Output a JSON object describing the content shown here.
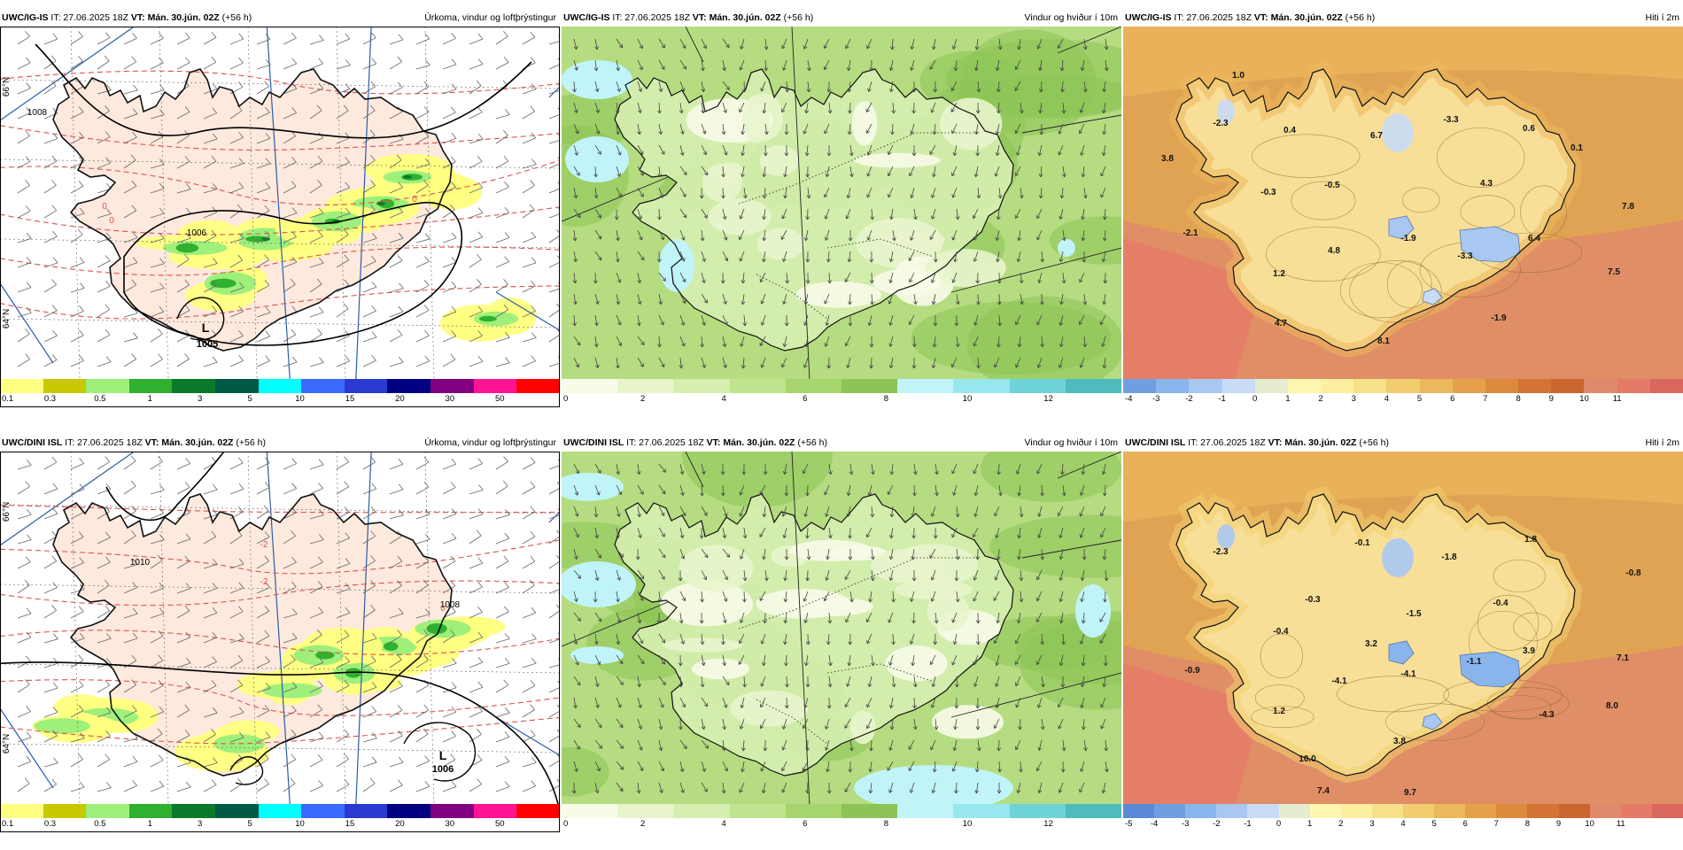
{
  "panels": [
    {
      "id": "tl",
      "model": "UWC/IG-IS",
      "it": "IT: 27.06.2025 18Z",
      "vt_label": "VT:",
      "vt": "Mán. 30.jún. 02Z",
      "lead": "(+56 h)",
      "title": "Úrkoma, vindur og loftþrýstingur",
      "type": "precip",
      "legend_labels": [
        "0.1",
        "0.3",
        "0.5",
        "1",
        "3",
        "5",
        "10",
        "15",
        "20",
        "30",
        "50"
      ],
      "legend_colors": [
        "#ffff80",
        "#c8c800",
        "#9ef07a",
        "#2fb02f",
        "#0a7a2a",
        "#005a44",
        "#00ffff",
        "#3a6bff",
        "#2a3ad0",
        "#000080",
        "#800080",
        "#ff1493",
        "#ff0000"
      ],
      "map_labels": [
        {
          "text": "L",
          "kind": "low"
        },
        {
          "text": "1005",
          "kind": "low"
        },
        {
          "text": "1008",
          "kind": "isobar"
        },
        {
          "text": "1006",
          "kind": "isobar"
        },
        {
          "text": "1006",
          "kind": "isobar"
        },
        {
          "text": "0",
          "kind": "iso0"
        },
        {
          "text": "0",
          "kind": "iso0"
        },
        {
          "text": "0",
          "kind": "iso0"
        },
        {
          "text": "66°N",
          "kind": "lat"
        },
        {
          "text": "64°N",
          "kind": "lat"
        }
      ]
    },
    {
      "id": "tm",
      "model": "UWC/IG-IS",
      "it": "IT: 27.06.2025 18Z",
      "vt_label": "VT:",
      "vt": "Mán. 30.jún. 02Z",
      "lead": "(+56 h)",
      "title": "Vindur og hviður í 10m",
      "type": "wind",
      "legend_labels": [
        "0",
        "2",
        "4",
        "6",
        "8",
        "10",
        "12"
      ],
      "legend_colors": [
        "#f7fbe8",
        "#e8f5cc",
        "#d6eeb0",
        "#bfe38f",
        "#a6d46e",
        "#8cc456",
        "#c0f4f8",
        "#96e8ee",
        "#6dd3d8",
        "#4ebcbf"
      ],
      "map_labels": []
    },
    {
      "id": "tr",
      "model": "UWC/IG-IS",
      "it": "IT: 27.06.2025 18Z",
      "vt_label": "VT:",
      "vt": "Mán. 30.jún. 02Z",
      "lead": "(+56 h)",
      "title": "Hiti í 2m",
      "type": "temp",
      "legend_labels": [
        "-4",
        "-3",
        "-2",
        "-1",
        "0",
        "1",
        "2",
        "3",
        "4",
        "5",
        "6",
        "7",
        "8",
        "9",
        "10",
        "11"
      ],
      "legend_colors": [
        "#6f9fe0",
        "#8ab4ec",
        "#a8c8f2",
        "#c8dcf5",
        "#e6eccf",
        "#fff6b2",
        "#fdefa0",
        "#f7e08a",
        "#f2cd70",
        "#ecb85c",
        "#e5a04a",
        "#dc8a3c",
        "#d37334",
        "#cb6630",
        "#e08a6c",
        "#e57a66",
        "#d9675e"
      ],
      "map_labels": [
        {
          "text": "1.0"
        },
        {
          "text": "-2.3"
        },
        {
          "text": "0.4"
        },
        {
          "text": "3.8"
        },
        {
          "text": "-0.3"
        },
        {
          "text": "-0.5"
        },
        {
          "text": "6.7"
        },
        {
          "text": "-3.3"
        },
        {
          "text": "0.6"
        },
        {
          "text": "0.1"
        },
        {
          "text": "4.3"
        },
        {
          "text": "7.8"
        },
        {
          "text": "-2.1"
        },
        {
          "text": "4.8"
        },
        {
          "text": "-1.9"
        },
        {
          "text": "6.4"
        },
        {
          "text": "-3.3"
        },
        {
          "text": "1.2"
        },
        {
          "text": "7.5"
        },
        {
          "text": "4.7"
        },
        {
          "text": "-1.9"
        },
        {
          "text": "8.1"
        }
      ]
    },
    {
      "id": "bl",
      "model": "UWC/DINI ISL",
      "it": "IT: 27.06.2025 18Z",
      "vt_label": "VT:",
      "vt": "Mán. 30.jún. 02Z",
      "lead": "(+56 h)",
      "title": "Úrkoma, vindur og loftþrýstingur",
      "type": "precip",
      "legend_labels": [
        "0.1",
        "0.3",
        "0.5",
        "1",
        "3",
        "5",
        "10",
        "15",
        "20",
        "30",
        "50"
      ],
      "legend_colors": [
        "#ffff80",
        "#c8c800",
        "#9ef07a",
        "#2fb02f",
        "#0a7a2a",
        "#005a44",
        "#00ffff",
        "#3a6bff",
        "#2a3ad0",
        "#000080",
        "#800080",
        "#ff1493",
        "#ff0000"
      ],
      "map_labels": [
        {
          "text": "L",
          "kind": "low"
        },
        {
          "text": "1006",
          "kind": "low"
        },
        {
          "text": "1010",
          "kind": "isobar"
        },
        {
          "text": "1008",
          "kind": "isobar"
        },
        {
          "text": "1008",
          "kind": "isobar"
        },
        {
          "text": "-2",
          "kind": "iso0"
        },
        {
          "text": "-2",
          "kind": "iso0"
        },
        {
          "text": "0",
          "kind": "iso0"
        },
        {
          "text": "0",
          "kind": "iso0"
        },
        {
          "text": "66°N",
          "kind": "lat"
        },
        {
          "text": "64°N",
          "kind": "lat"
        }
      ]
    },
    {
      "id": "bm",
      "model": "UWC/DINI ISL",
      "it": "IT: 27.06.2025 18Z",
      "vt_label": "VT:",
      "vt": "Mán. 30.jún. 02Z",
      "lead": "(+56 h)",
      "title": "Vindur og hviður í 10m",
      "type": "wind",
      "legend_labels": [
        "0",
        "2",
        "4",
        "6",
        "8",
        "10",
        "12"
      ],
      "legend_colors": [
        "#f7fbe8",
        "#e8f5cc",
        "#d6eeb0",
        "#bfe38f",
        "#a6d46e",
        "#8cc456",
        "#c0f4f8",
        "#96e8ee",
        "#6dd3d8",
        "#4ebcbf"
      ],
      "map_labels": []
    },
    {
      "id": "br",
      "model": "UWC/DINI ISL",
      "it": "IT: 27.06.2025 18Z",
      "vt_label": "VT:",
      "vt": "Mán. 30.jún. 02Z",
      "lead": "(+56 h)",
      "title": "Hiti í 2m",
      "type": "temp",
      "legend_labels": [
        "-5",
        "-4",
        "-3",
        "-2",
        "-1",
        "0",
        "1",
        "2",
        "3",
        "4",
        "5",
        "6",
        "7",
        "8",
        "9",
        "10",
        "11"
      ],
      "legend_colors": [
        "#5a8ad8",
        "#6f9fe0",
        "#8ab4ec",
        "#a8c8f2",
        "#c8dcf5",
        "#e6eccf",
        "#fff6b2",
        "#fdefa0",
        "#f7e08a",
        "#f2cd70",
        "#ecb85c",
        "#e5a04a",
        "#dc8a3c",
        "#d37334",
        "#cb6630",
        "#e08a6c",
        "#e57a66",
        "#d9675e"
      ],
      "map_labels": [
        {
          "text": "-2.3"
        },
        {
          "text": "-0.1"
        },
        {
          "text": "-1.8"
        },
        {
          "text": "1.8"
        },
        {
          "text": "-0.3"
        },
        {
          "text": "-0.8"
        },
        {
          "text": "-0.4"
        },
        {
          "text": "-1.5"
        },
        {
          "text": "-0.4"
        },
        {
          "text": "3.2"
        },
        {
          "text": "3.9"
        },
        {
          "text": "7.1"
        },
        {
          "text": "-0.9"
        },
        {
          "text": "-4.1"
        },
        {
          "text": "-4.1"
        },
        {
          "text": "-1.1"
        },
        {
          "text": "1.2"
        },
        {
          "text": "-4.3"
        },
        {
          "text": "8.0"
        },
        {
          "text": "3.8"
        },
        {
          "text": "10.0"
        },
        {
          "text": "7.4"
        },
        {
          "text": "9.7"
        }
      ]
    }
  ],
  "colors": {
    "land_precip": "#fde9dd",
    "sea_precip": "#ffffff",
    "wind_base": "#b5dc80",
    "temp_sea": "#e0a253",
    "temp_land": "#f8df98",
    "coast": "#111111",
    "isobar": "#000000",
    "iso0_red": "#e05050",
    "iso_blue": "#3050d0",
    "meridian": "#2a5ea8"
  }
}
